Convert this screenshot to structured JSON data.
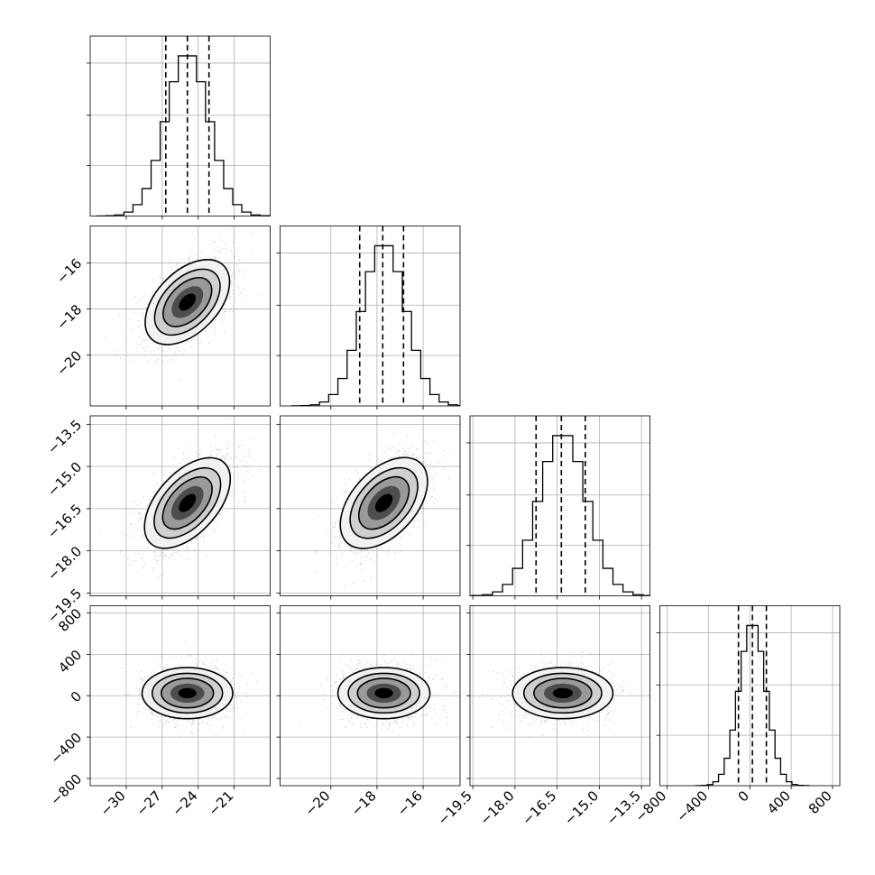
{
  "chart_data": {
    "type": "corner",
    "parameters": [
      {
        "index": 0,
        "range": [
          -33,
          -18
        ],
        "ticks": [
          -30,
          -27,
          -24,
          -21
        ],
        "quantiles": [
          -26.7,
          -24.9,
          -23.1
        ],
        "mode": -24.9,
        "std": 1.8
      },
      {
        "index": 1,
        "range": [
          -22.2,
          -14.4
        ],
        "ticks": [
          -20,
          -18,
          -16
        ],
        "quantiles": [
          -18.75,
          -17.75,
          -16.85
        ],
        "mode": -17.7,
        "std": 0.95
      },
      {
        "index": 2,
        "range": [
          -19.6,
          -13.2
        ],
        "ticks": [
          -19.5,
          -18.0,
          -16.5,
          -15.0,
          -13.5
        ],
        "tick_labels": [
          "−19.5",
          "−18.0",
          "−16.5",
          "−15.0",
          "−13.5"
        ],
        "quantiles": [
          -17.25,
          -16.35,
          -15.5
        ],
        "mode": -16.3,
        "std": 0.85
      },
      {
        "index": 3,
        "range": [
          -870,
          870
        ],
        "ticks": [
          -800,
          -400,
          0,
          400,
          800
        ],
        "quantiles": [
          -110,
          25,
          160
        ],
        "mode": 25,
        "std": 130
      }
    ],
    "grid": true,
    "quantile_levels": [
      0.16,
      0.5,
      0.84
    ],
    "histogram_style": "step",
    "contours": "filled density with 3 contour levels and scatter of outlying samples",
    "correlations": [
      {
        "pair": [
          0,
          1
        ],
        "rho": 0.55
      },
      {
        "pair": [
          0,
          2
        ],
        "rho": 0.6
      },
      {
        "pair": [
          1,
          2
        ],
        "rho": 0.55
      },
      {
        "pair": [
          0,
          3
        ],
        "rho": 0.0
      },
      {
        "pair": [
          1,
          3
        ],
        "rho": 0.0
      },
      {
        "pair": [
          2,
          3
        ],
        "rho": 0.0
      }
    ]
  }
}
